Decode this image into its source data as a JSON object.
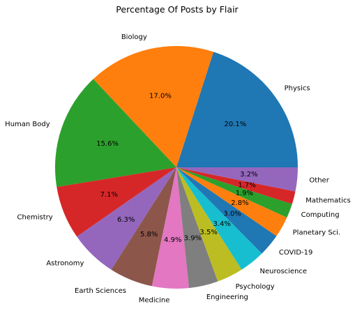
{
  "chart_data": {
    "type": "pie",
    "title": "Percentage Of Posts by Flair",
    "categories": [
      "Physics",
      "Biology",
      "Human Body",
      "Chemistry",
      "Astronomy",
      "Earth Sciences",
      "Medicine",
      "Engineering",
      "Psychology",
      "Neuroscience",
      "COVID-19",
      "Planetary Sci.",
      "Computing",
      "Mathematics",
      "Other"
    ],
    "values": [
      20.1,
      17.0,
      15.6,
      7.1,
      6.3,
      5.8,
      4.9,
      3.9,
      3.5,
      3.4,
      3.0,
      2.8,
      1.9,
      1.7,
      3.2
    ],
    "value_labels": [
      "20.1%",
      "17.0%",
      "15.6%",
      "7.1%",
      "6.3%",
      "5.8%",
      "4.9%",
      "3.9%",
      "3.5%",
      "3.4%",
      "3.0%",
      "2.8%",
      "1.9%",
      "1.7%",
      "3.2%"
    ],
    "colors": [
      "#1f77b4",
      "#ff7f0e",
      "#2ca02c",
      "#d62728",
      "#9467bd",
      "#8c564b",
      "#e377c2",
      "#7f7f7f",
      "#bcbd22",
      "#17becf",
      "#1f77b4",
      "#ff7f0e",
      "#2ca02c",
      "#d62728",
      "#9467bd"
    ],
    "start_angle_deg": 0,
    "direction": "counterclockwise"
  }
}
